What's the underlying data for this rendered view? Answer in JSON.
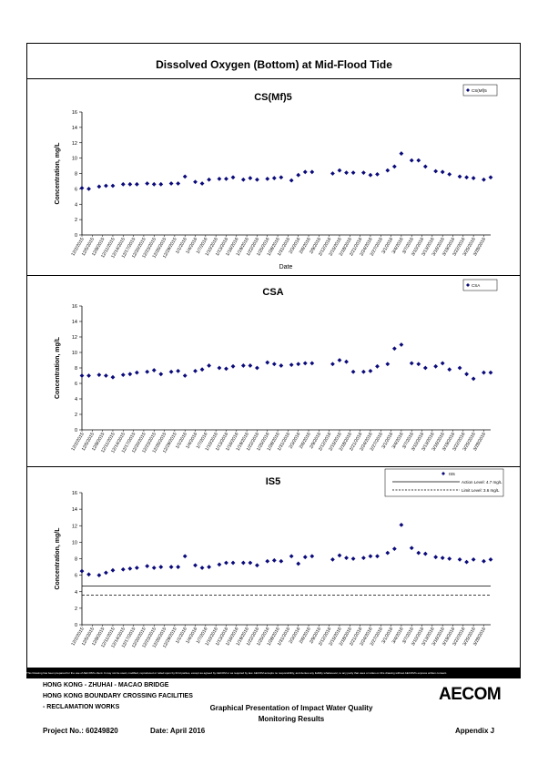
{
  "page_title": "Dissolved Oxygen (Bottom) at Mid-Flood Tide",
  "chart_data": [
    {
      "type": "scatter",
      "title": "CS(Mf)5",
      "xlabel": "Date",
      "ylabel": "Concentration, mg/L",
      "ylim": [
        0,
        16
      ],
      "yticks": [
        0,
        2,
        4,
        6,
        8,
        10,
        12,
        14,
        16
      ],
      "xticks": [
        "12/2/2015",
        "12/5/2015",
        "12/8/2015",
        "12/11/2015",
        "12/14/2015",
        "12/17/2015",
        "12/20/2015",
        "12/23/2015",
        "12/26/2015",
        "12/29/2015",
        "1/1/2016",
        "1/4/2016",
        "1/7/2016",
        "1/10/2016",
        "1/13/2016",
        "1/16/2016",
        "1/19/2016",
        "1/22/2016",
        "1/25/2016",
        "1/28/2016",
        "1/31/2016",
        "2/3/2016",
        "2/6/2016",
        "2/9/2016",
        "2/12/2016",
        "2/15/2016",
        "2/18/2016",
        "2/21/2016",
        "2/24/2016",
        "2/27/2016",
        "3/1/2016",
        "3/4/2016",
        "3/7/2016",
        "3/10/2016",
        "3/13/2016",
        "3/16/2016",
        "3/19/2016",
        "3/22/2016",
        "3/25/2016",
        "3/28/2016"
      ],
      "legend": {
        "position": "top-right",
        "entries": [
          "CS(Mf)5"
        ]
      },
      "grid": false,
      "series": [
        {
          "name": "CS(Mf)5",
          "x": [
            "12/2/2015",
            "12/4/2015",
            "12/7/2015",
            "12/9/2015",
            "12/11/2015",
            "12/14/2015",
            "12/16/2015",
            "12/18/2015",
            "12/21/2015",
            "12/23/2015",
            "12/25/2015",
            "12/28/2015",
            "12/30/2015",
            "1/1/2016",
            "1/4/2016",
            "1/6/2016",
            "1/8/2016",
            "1/11/2016",
            "1/13/2016",
            "1/15/2016",
            "1/18/2016",
            "1/20/2016",
            "1/22/2016",
            "1/25/2016",
            "1/27/2016",
            "1/29/2016",
            "2/1/2016",
            "2/3/2016",
            "2/5/2016",
            "2/7/2016",
            "2/13/2016",
            "2/15/2016",
            "2/17/2016",
            "2/19/2016",
            "2/22/2016",
            "2/24/2016",
            "2/26/2016",
            "2/29/2016",
            "3/2/2016",
            "3/4/2016",
            "3/7/2016",
            "3/9/2016",
            "3/11/2016",
            "3/14/2016",
            "3/16/2016",
            "3/18/2016",
            "3/21/2016",
            "3/23/2016",
            "3/25/2016",
            "3/28/2016",
            "3/30/2016"
          ],
          "y": [
            6.1,
            6.0,
            6.3,
            6.4,
            6.4,
            6.6,
            6.6,
            6.6,
            6.7,
            6.6,
            6.6,
            6.7,
            6.7,
            7.6,
            6.9,
            6.7,
            7.2,
            7.3,
            7.3,
            7.5,
            7.2,
            7.4,
            7.2,
            7.3,
            7.4,
            7.5,
            7.1,
            7.8,
            8.2,
            8.2,
            8.0,
            8.4,
            8.1,
            8.1,
            8.1,
            7.8,
            7.9,
            8.4,
            8.9,
            10.6,
            9.7,
            9.7,
            8.9,
            8.3,
            8.2,
            7.9,
            7.6,
            7.5,
            7.4,
            7.2,
            7.5
          ]
        }
      ]
    },
    {
      "type": "scatter",
      "title": "CSA",
      "xlabel": "",
      "ylabel": "Concentration, mg/L",
      "ylim": [
        0,
        16
      ],
      "yticks": [
        0,
        2,
        4,
        6,
        8,
        10,
        12,
        14,
        16
      ],
      "xticks": [
        "12/2/2015",
        "12/5/2015",
        "12/8/2015",
        "12/11/2015",
        "12/14/2015",
        "12/17/2015",
        "12/20/2015",
        "12/23/2015",
        "12/26/2015",
        "12/29/2015",
        "1/1/2016",
        "1/4/2016",
        "1/7/2016",
        "1/10/2016",
        "1/13/2016",
        "1/16/2016",
        "1/19/2016",
        "1/22/2016",
        "1/25/2016",
        "1/28/2016",
        "1/31/2016",
        "2/3/2016",
        "2/6/2016",
        "2/9/2016",
        "2/12/2016",
        "2/15/2016",
        "2/18/2016",
        "2/21/2016",
        "2/24/2016",
        "2/27/2016",
        "3/1/2016",
        "3/4/2016",
        "3/7/2016",
        "3/10/2016",
        "3/13/2016",
        "3/16/2016",
        "3/19/2016",
        "3/22/2016",
        "3/25/2016",
        "3/28/2016"
      ],
      "legend": {
        "position": "top-right",
        "entries": [
          "CSA"
        ]
      },
      "grid": false,
      "series": [
        {
          "name": "CSA",
          "x": [
            "12/2/2015",
            "12/4/2015",
            "12/7/2015",
            "12/9/2015",
            "12/11/2015",
            "12/14/2015",
            "12/16/2015",
            "12/18/2015",
            "12/21/2015",
            "12/23/2015",
            "12/25/2015",
            "12/28/2015",
            "12/30/2015",
            "1/1/2016",
            "1/4/2016",
            "1/6/2016",
            "1/8/2016",
            "1/11/2016",
            "1/13/2016",
            "1/15/2016",
            "1/18/2016",
            "1/20/2016",
            "1/22/2016",
            "1/25/2016",
            "1/27/2016",
            "1/29/2016",
            "2/1/2016",
            "2/3/2016",
            "2/5/2016",
            "2/7/2016",
            "2/13/2016",
            "2/15/2016",
            "2/17/2016",
            "2/19/2016",
            "2/22/2016",
            "2/24/2016",
            "2/26/2016",
            "2/29/2016",
            "3/2/2016",
            "3/4/2016",
            "3/7/2016",
            "3/9/2016",
            "3/11/2016",
            "3/14/2016",
            "3/16/2016",
            "3/18/2016",
            "3/21/2016",
            "3/23/2016",
            "3/25/2016",
            "3/28/2016",
            "3/30/2016"
          ],
          "y": [
            7.0,
            7.0,
            7.1,
            7.0,
            6.8,
            7.1,
            7.2,
            7.4,
            7.5,
            7.7,
            7.2,
            7.5,
            7.6,
            7.0,
            7.6,
            7.8,
            8.3,
            8.0,
            7.9,
            8.2,
            8.3,
            8.3,
            8.0,
            8.7,
            8.5,
            8.3,
            8.4,
            8.5,
            8.6,
            8.6,
            8.5,
            9.0,
            8.8,
            7.5,
            7.5,
            7.6,
            8.2,
            8.5,
            10.5,
            11.0,
            8.6,
            8.5,
            8.0,
            8.2,
            8.6,
            7.8,
            8.0,
            7.2,
            6.6,
            7.4,
            7.4
          ]
        }
      ]
    },
    {
      "type": "scatter",
      "title": "IS5",
      "xlabel": "",
      "ylabel": "Concentration, mg/L",
      "ylim": [
        0,
        16
      ],
      "yticks": [
        0,
        2,
        4,
        6,
        8,
        10,
        12,
        14,
        16
      ],
      "xticks": [
        "12/2/2015",
        "12/5/2015",
        "12/8/2015",
        "12/11/2015",
        "12/14/2015",
        "12/17/2015",
        "12/20/2015",
        "12/23/2015",
        "12/26/2015",
        "12/29/2015",
        "1/1/2016",
        "1/4/2016",
        "1/7/2016",
        "1/10/2016",
        "1/13/2016",
        "1/16/2016",
        "1/19/2016",
        "1/22/2016",
        "1/25/2016",
        "1/28/2016",
        "1/31/2016",
        "2/3/2016",
        "2/6/2016",
        "2/9/2016",
        "2/12/2016",
        "2/15/2016",
        "2/18/2016",
        "2/21/2016",
        "2/24/2016",
        "2/27/2016",
        "3/1/2016",
        "3/4/2016",
        "3/7/2016",
        "3/10/2016",
        "3/13/2016",
        "3/16/2016",
        "3/19/2016",
        "3/22/2016",
        "3/25/2016",
        "3/28/2016"
      ],
      "legend": {
        "position": "top-right",
        "entries": [
          "IS5",
          "Action Level: 4.7 mg/L",
          "Limit Level: 3.6 mg/L"
        ]
      },
      "grid": false,
      "reference_lines": [
        {
          "label": "Action Level: 4.7 mg/L",
          "value": 4.7,
          "style": "solid"
        },
        {
          "label": "Limit Level: 3.6 mg/L",
          "value": 3.6,
          "style": "dashed"
        }
      ],
      "series": [
        {
          "name": "IS5",
          "x": [
            "12/2/2015",
            "12/4/2015",
            "12/7/2015",
            "12/9/2015",
            "12/11/2015",
            "12/14/2015",
            "12/16/2015",
            "12/18/2015",
            "12/21/2015",
            "12/23/2015",
            "12/25/2015",
            "12/28/2015",
            "12/30/2015",
            "1/1/2016",
            "1/4/2016",
            "1/6/2016",
            "1/8/2016",
            "1/11/2016",
            "1/13/2016",
            "1/15/2016",
            "1/18/2016",
            "1/20/2016",
            "1/22/2016",
            "1/25/2016",
            "1/27/2016",
            "1/29/2016",
            "2/1/2016",
            "2/3/2016",
            "2/5/2016",
            "2/7/2016",
            "2/13/2016",
            "2/15/2016",
            "2/17/2016",
            "2/19/2016",
            "2/22/2016",
            "2/24/2016",
            "2/26/2016",
            "2/29/2016",
            "3/2/2016",
            "3/4/2016",
            "3/7/2016",
            "3/9/2016",
            "3/11/2016",
            "3/14/2016",
            "3/16/2016",
            "3/18/2016",
            "3/21/2016",
            "3/23/2016",
            "3/25/2016",
            "3/28/2016",
            "3/30/2016"
          ],
          "y": [
            6.5,
            6.1,
            6.0,
            6.3,
            6.6,
            6.7,
            6.8,
            6.9,
            7.1,
            6.9,
            7.0,
            7.0,
            7.0,
            8.3,
            7.2,
            6.9,
            7.0,
            7.3,
            7.5,
            7.5,
            7.5,
            7.5,
            7.2,
            7.7,
            7.8,
            7.7,
            8.3,
            7.4,
            8.2,
            8.3,
            7.9,
            8.4,
            8.1,
            8.0,
            8.1,
            8.3,
            8.3,
            8.7,
            9.2,
            12.1,
            9.3,
            8.7,
            8.6,
            8.2,
            8.1,
            8.0,
            7.9,
            7.6,
            7.9,
            7.7,
            7.9
          ]
        }
      ]
    }
  ],
  "disclaimer": "This Drawing has been prepared for the use of AECOM's client. It may not be used, modified, reproduced or relied upon by third parties, except as agreed by AECOM or as required by law. AECOM accepts no responsibility, and denies any liability whatsoever, to any party that uses or relies on this drawing without AECOM's express written consent.",
  "footer": {
    "line1": "HONG KONG - ZHUHAI - MACAO BRIDGE",
    "line2": "HONG KONG BOUNDARY CROSSING FACILITIES",
    "line3": "- RECLAMATION WORKS",
    "center1": "Graphical Presentation of Impact Water Quality",
    "center2": "Monitoring Results",
    "project": "Project No.: 60249820",
    "date": "Date: April 2016",
    "appendix": "Appendix J",
    "logo": "AECOM"
  },
  "colors": {
    "marker": "#0a0a7a",
    "axis": "#000000"
  }
}
